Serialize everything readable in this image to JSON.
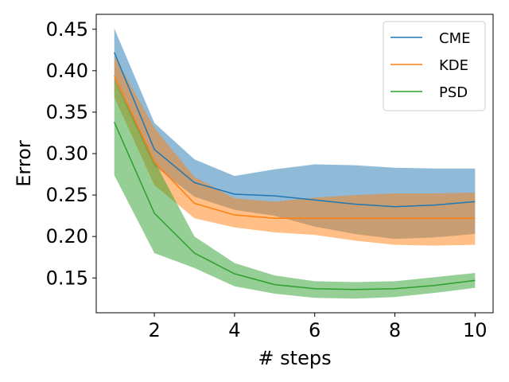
{
  "chart_data": {
    "type": "line",
    "xlabel": "# steps",
    "ylabel": "Error",
    "xlim": [
      0.55,
      10.45
    ],
    "ylim": [
      0.108,
      0.468
    ],
    "xticks": [
      2,
      4,
      6,
      8,
      10
    ],
    "yticks": [
      0.15,
      0.2,
      0.25,
      0.3,
      0.35,
      0.4,
      0.45
    ],
    "ytick_labels": [
      "0.15",
      "0.20",
      "0.25",
      "0.30",
      "0.35",
      "0.40",
      "0.45"
    ],
    "xtick_labels": [
      "2",
      "4",
      "6",
      "8",
      "10"
    ],
    "grid": false,
    "legend_position": "top-right",
    "x": [
      1,
      2,
      3,
      4,
      5,
      6,
      7,
      8,
      9,
      10
    ],
    "series": [
      {
        "name": "CME",
        "color": "#1f77b4",
        "values": [
          0.422,
          0.305,
          0.265,
          0.251,
          0.249,
          0.244,
          0.239,
          0.236,
          0.238,
          0.242
        ],
        "lower": [
          0.388,
          0.285,
          0.248,
          0.232,
          0.225,
          0.212,
          0.203,
          0.197,
          0.199,
          0.203
        ],
        "upper": [
          0.451,
          0.337,
          0.293,
          0.273,
          0.281,
          0.287,
          0.286,
          0.283,
          0.282,
          0.282
        ]
      },
      {
        "name": "KDE",
        "color": "#ff7f0e",
        "values": [
          0.394,
          0.29,
          0.24,
          0.226,
          0.222,
          0.222,
          0.222,
          0.222,
          0.222,
          0.222
        ],
        "lower": [
          0.368,
          0.262,
          0.222,
          0.211,
          0.205,
          0.202,
          0.195,
          0.19,
          0.189,
          0.19
        ],
        "upper": [
          0.418,
          0.331,
          0.272,
          0.246,
          0.242,
          0.247,
          0.25,
          0.252,
          0.252,
          0.253
        ]
      },
      {
        "name": "PSD",
        "color": "#2ca02c",
        "values": [
          0.338,
          0.228,
          0.18,
          0.155,
          0.142,
          0.137,
          0.136,
          0.137,
          0.141,
          0.147
        ],
        "lower": [
          0.274,
          0.18,
          0.162,
          0.14,
          0.131,
          0.126,
          0.125,
          0.127,
          0.132,
          0.138
        ],
        "upper": [
          0.39,
          0.291,
          0.2,
          0.168,
          0.153,
          0.146,
          0.145,
          0.146,
          0.151,
          0.156
        ]
      }
    ]
  }
}
